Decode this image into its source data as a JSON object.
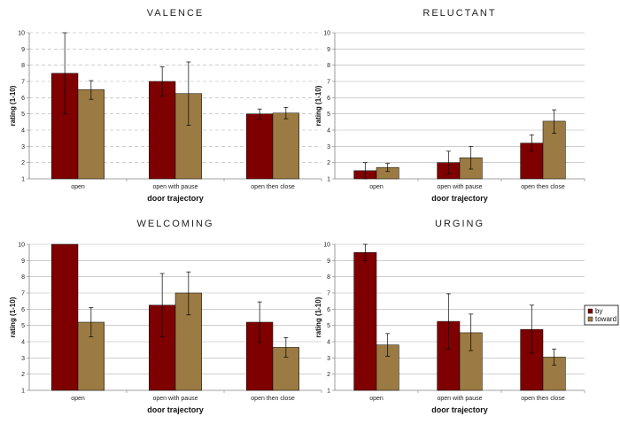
{
  "colors": {
    "by": "#7f0000",
    "toward": "#9b7b43",
    "grid": "#b0b0b0",
    "axis": "#808080"
  },
  "legend": {
    "items": [
      {
        "label": "by",
        "color": "#7f0000"
      },
      {
        "label": "toward",
        "color": "#9b7b43"
      }
    ]
  },
  "chart_data": [
    {
      "type": "bar",
      "title": "VALENCE",
      "xlabel": "door trajectory",
      "ylabel": "rating (1-10)",
      "ylim": [
        1,
        10
      ],
      "yticks": [
        "1",
        "2",
        "3",
        "4",
        "5",
        "6",
        "7",
        "8",
        "9",
        "10"
      ],
      "grid": "dashed",
      "categories": [
        "open",
        "open with pause",
        "open then close"
      ],
      "series": [
        {
          "name": "by",
          "values": [
            7.5,
            7.0,
            5.0
          ],
          "err_low": [
            5.0,
            6.1,
            4.7
          ],
          "err_high": [
            10.0,
            7.9,
            5.3
          ]
        },
        {
          "name": "toward",
          "values": [
            6.5,
            6.25,
            5.05
          ],
          "err_low": [
            5.9,
            4.3,
            4.7
          ],
          "err_high": [
            7.05,
            8.2,
            5.4
          ]
        }
      ]
    },
    {
      "type": "bar",
      "title": "RELUCTANT",
      "xlabel": "door trajectory",
      "ylabel": "rating (1-10)",
      "ylim": [
        1,
        10
      ],
      "yticks": [
        "1",
        "2",
        "3",
        "4",
        "5",
        "6",
        "7",
        "8",
        "9",
        "10"
      ],
      "grid": "solid",
      "categories": [
        "open",
        "open with pause",
        "open then close"
      ],
      "series": [
        {
          "name": "by",
          "values": [
            1.5,
            2.0,
            3.2
          ],
          "err_low": [
            1.0,
            1.3,
            2.7
          ],
          "err_high": [
            2.0,
            2.7,
            3.7
          ]
        },
        {
          "name": "toward",
          "values": [
            1.7,
            2.3,
            4.55
          ],
          "err_low": [
            1.45,
            1.6,
            3.8
          ],
          "err_high": [
            1.95,
            3.0,
            5.25
          ]
        }
      ]
    },
    {
      "type": "bar",
      "title": "WELCOMING",
      "xlabel": "door trajectory",
      "ylabel": "rating (1-10)",
      "ylim": [
        1,
        10
      ],
      "yticks": [
        "1",
        "2",
        "3",
        "4",
        "5",
        "6",
        "7",
        "8",
        "9",
        "10"
      ],
      "grid": "solid",
      "categories": [
        "open",
        "open with pause",
        "open then close"
      ],
      "series": [
        {
          "name": "by",
          "values": [
            10.0,
            6.25,
            5.2
          ],
          "err_low": [
            10.0,
            4.3,
            3.95
          ],
          "err_high": [
            10.0,
            8.2,
            6.45
          ]
        },
        {
          "name": "toward",
          "values": [
            5.2,
            7.0,
            3.65
          ],
          "err_low": [
            4.3,
            5.65,
            3.05
          ],
          "err_high": [
            6.1,
            8.3,
            4.25
          ]
        }
      ]
    },
    {
      "type": "bar",
      "title": "URGING",
      "xlabel": "door trajectory",
      "ylabel": "rating (1-10)",
      "ylim": [
        1,
        10
      ],
      "yticks": [
        "1",
        "2",
        "3",
        "4",
        "5",
        "6",
        "7",
        "8",
        "9",
        "10"
      ],
      "grid": "solid",
      "categories": [
        "open",
        "open with pause",
        "open then close"
      ],
      "series": [
        {
          "name": "by",
          "values": [
            9.5,
            5.25,
            4.75
          ],
          "err_low": [
            9.0,
            3.55,
            3.3
          ],
          "err_high": [
            10.0,
            6.95,
            6.25
          ]
        },
        {
          "name": "toward",
          "values": [
            3.8,
            4.55,
            3.05
          ],
          "err_low": [
            3.1,
            3.45,
            2.55
          ],
          "err_high": [
            4.5,
            5.7,
            3.55
          ]
        }
      ]
    }
  ]
}
